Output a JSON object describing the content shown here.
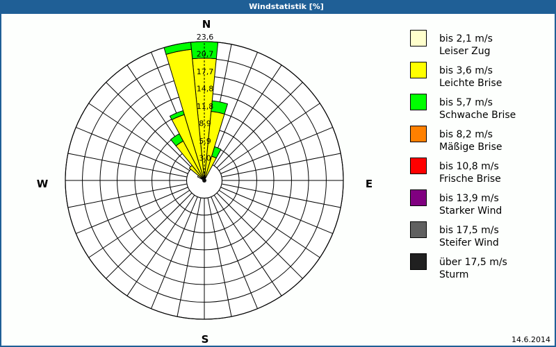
{
  "window": {
    "title": "Windstatistik [%]"
  },
  "compass": {
    "n": "N",
    "e": "E",
    "s": "S",
    "w": "W"
  },
  "footer": {
    "date": "14.6.2014"
  },
  "chart_data": {
    "type": "bar",
    "subtype": "wind_rose_polar_stacked",
    "title": "Windstatistik [%]",
    "unit": "%",
    "sector_count": 32,
    "rmax": 23.6,
    "ring_values": [
      3.0,
      5.9,
      8.9,
      11.8,
      14.8,
      17.7,
      20.7,
      23.6
    ],
    "ring_labels": [
      "3,0",
      "5,9",
      "8,9",
      "11,8",
      "14,8",
      "17,7",
      "20,7",
      "23,6"
    ],
    "compass_labels": [
      "N",
      "E",
      "S",
      "W"
    ],
    "grid": true,
    "legend_position": "right",
    "classes": [
      {
        "range": "bis 2,1 m/s",
        "name": "Leiser Zug",
        "color": "#FFFFCC"
      },
      {
        "range": "bis 3,6 m/s",
        "name": "Leichte Brise",
        "color": "#FFFF00"
      },
      {
        "range": "bis 5,7 m/s",
        "name": "Schwache Brise",
        "color": "#00FF00"
      },
      {
        "range": "bis 8,2 m/s",
        "name": "Mäßige Brise",
        "color": "#FF8000"
      },
      {
        "range": "bis 10,8 m/s",
        "name": "Frische Brise",
        "color": "#FF0000"
      },
      {
        "range": "bis 13,9 m/s",
        "name": "Starker Wind",
        "color": "#800080"
      },
      {
        "range": "bis 17,5 m/s",
        "name": "Steifer Wind",
        "color": "#606060"
      },
      {
        "range": "über 17,5 m/s",
        "name": "Sturm",
        "color": "#202020"
      }
    ],
    "directions_deg": [
      0,
      11.25,
      22.5,
      303.75,
      315,
      326.25,
      337.5,
      348.75
    ],
    "series": [
      {
        "name": "bis 2,1 m/s",
        "values": [
          0,
          0,
          0,
          1.3,
          0,
          0,
          0,
          0
        ]
      },
      {
        "name": "bis 3,6 m/s",
        "values": [
          20.8,
          11.8,
          4.3,
          0,
          3.3,
          7.6,
          11.7,
          22.4
        ]
      },
      {
        "name": "bis 5,7 m/s",
        "values": [
          2.8,
          1.8,
          1.7,
          0,
          0,
          1.4,
          0.7,
          1.2
        ]
      },
      {
        "name": "bis 8,2 m/s",
        "values": [
          0,
          0,
          0,
          0,
          0,
          0,
          0,
          0
        ]
      },
      {
        "name": "bis 10,8 m/s",
        "values": [
          0,
          0,
          0,
          0,
          0,
          0,
          0,
          0
        ]
      },
      {
        "name": "bis 13,9 m/s",
        "values": [
          0,
          0,
          0,
          0,
          0,
          0,
          0,
          0
        ]
      },
      {
        "name": "bis 17,5 m/s",
        "values": [
          0,
          0,
          0,
          0,
          0,
          0,
          0,
          0
        ]
      },
      {
        "name": "über 17,5 m/s",
        "values": [
          0,
          0,
          0,
          0,
          0,
          0,
          0,
          0
        ]
      }
    ]
  }
}
